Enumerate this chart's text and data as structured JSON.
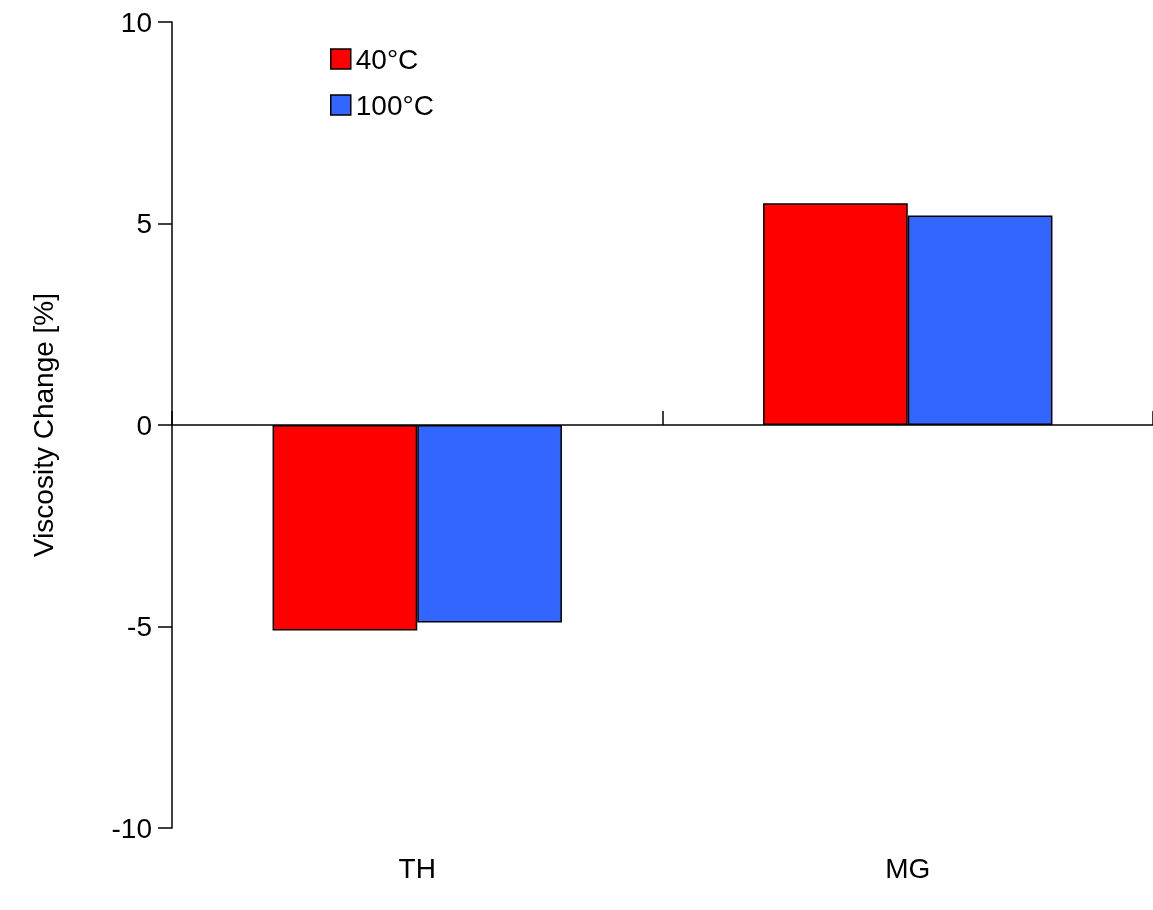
{
  "chart_data": {
    "type": "bar",
    "ylabel": "Viscosity Change [%]",
    "categories": [
      "TH",
      "MG"
    ],
    "series": [
      {
        "name": "40°C",
        "color": "#ff0000",
        "values": [
          -5.1,
          5.5
        ]
      },
      {
        "name": "100°C",
        "color": "#3366ff",
        "values": [
          -4.9,
          5.2
        ]
      }
    ],
    "ylim": [
      -10,
      10
    ],
    "yticks": [
      -10,
      -5,
      0,
      5,
      10
    ],
    "legend": "top left"
  }
}
